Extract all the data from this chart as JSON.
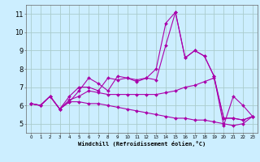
{
  "title": "",
  "xlabel": "Windchill (Refroidissement éolien,°C)",
  "background_color": "#cceeff",
  "grid_color": "#aacccc",
  "line_color": "#aa00aa",
  "x": [
    0,
    1,
    2,
    3,
    4,
    5,
    6,
    7,
    8,
    9,
    10,
    11,
    12,
    13,
    14,
    15,
    16,
    17,
    18,
    19,
    20,
    21,
    22,
    23
  ],
  "series": [
    [
      6.1,
      6.0,
      6.5,
      5.8,
      6.2,
      6.8,
      7.5,
      7.2,
      6.8,
      7.6,
      7.5,
      7.4,
      7.5,
      8.0,
      10.5,
      11.1,
      8.6,
      9.0,
      8.7,
      7.6,
      4.9,
      6.5,
      6.0,
      5.4
    ],
    [
      6.1,
      6.0,
      6.5,
      5.8,
      6.5,
      7.0,
      7.0,
      6.8,
      7.5,
      7.4,
      7.5,
      7.3,
      7.5,
      7.4,
      9.3,
      11.1,
      8.6,
      9.0,
      8.7,
      7.6,
      5.3,
      5.3,
      5.2,
      5.4
    ],
    [
      6.1,
      6.0,
      6.5,
      5.8,
      6.3,
      6.5,
      6.8,
      6.7,
      6.6,
      6.6,
      6.6,
      6.6,
      6.6,
      6.6,
      6.7,
      6.8,
      7.0,
      7.1,
      7.3,
      7.5,
      5.3,
      5.3,
      5.2,
      5.4
    ],
    [
      6.1,
      6.0,
      6.5,
      5.8,
      6.2,
      6.2,
      6.1,
      6.1,
      6.0,
      5.9,
      5.8,
      5.7,
      5.6,
      5.5,
      5.4,
      5.3,
      5.3,
      5.2,
      5.2,
      5.1,
      5.0,
      4.9,
      5.0,
      5.4
    ]
  ],
  "ylim": [
    4.5,
    11.5
  ],
  "yticks": [
    5,
    6,
    7,
    8,
    9,
    10,
    11
  ],
  "xlim": [
    -0.5,
    23.5
  ],
  "markersize": 2.0,
  "linewidth": 0.8
}
